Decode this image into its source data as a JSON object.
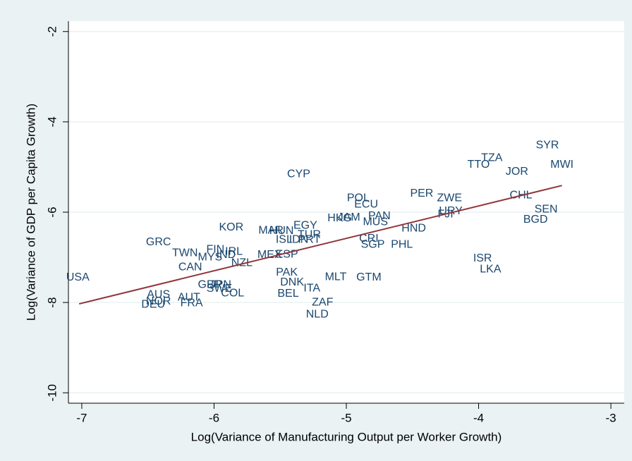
{
  "chart_data": {
    "type": "scatter",
    "x_label": "Log(Variance of Manufacturing Output per Worker Growth)",
    "y_label": "Log(Variance of GDP per Capita Growth)",
    "xlim": [
      -7.101,
      -2.899
    ],
    "ylim": [
      -10.23,
      -1.77
    ],
    "xticks": [
      -7,
      -6,
      -5,
      -4,
      -3
    ],
    "yticks": [
      -10,
      -8,
      -6,
      -4,
      -2
    ],
    "grid": true,
    "series": [
      {
        "type": "scatter",
        "color": "#1a476f",
        "labels": [
          "USA",
          "GRC",
          "TWN",
          "CAN",
          "MYS",
          "FIN",
          "IRL",
          "IND",
          "NZL",
          "KOR",
          "GBR",
          "JPN",
          "SWE",
          "COL",
          "AUS",
          "NOR",
          "DEU",
          "AUT",
          "FRA",
          "MAR",
          "HUN",
          "CYP",
          "EGY",
          "TUR",
          "ISL",
          "IDN",
          "PRT",
          "MEX",
          "ESP",
          "PAK",
          "DNK",
          "BEL",
          "ITA",
          "ZAF",
          "NLD",
          "MLT",
          "GTM",
          "POL",
          "ECU",
          "HKG",
          "JAM",
          "PAN",
          "MUS",
          "CRI",
          "SGP",
          "PHL",
          "HND",
          "PER",
          "ZWE",
          "URY",
          "FJI",
          "ISR",
          "LKA",
          "TTO",
          "TZA",
          "JOR",
          "CHL",
          "SYR",
          "MWI",
          "SEN",
          "BGD"
        ],
        "x": [
          -7.03,
          -6.42,
          -6.22,
          -6.18,
          -6.03,
          -5.99,
          -5.85,
          -5.91,
          -5.79,
          -5.87,
          -6.03,
          -5.95,
          -5.96,
          -5.86,
          -6.42,
          -6.42,
          -6.46,
          -6.19,
          -6.17,
          -5.57,
          -5.49,
          -5.36,
          -5.31,
          -5.28,
          -5.47,
          -5.36,
          -5.28,
          -5.58,
          -5.45,
          -5.45,
          -5.41,
          -5.44,
          -5.26,
          -5.18,
          -5.22,
          -5.08,
          -4.83,
          -4.91,
          -4.85,
          -5.05,
          -4.98,
          -4.75,
          -4.78,
          -4.83,
          -4.8,
          -4.58,
          -4.49,
          -4.43,
          -4.22,
          -4.21,
          -4.25,
          -3.97,
          -3.91,
          -4.0,
          -3.9,
          -3.71,
          -3.68,
          -3.48,
          -3.37,
          -3.49,
          -3.57
        ],
        "values": [
          -7.45,
          -6.67,
          -6.91,
          -7.22,
          -7.0,
          -6.83,
          -6.88,
          -6.95,
          -7.13,
          -6.34,
          -7.61,
          -7.61,
          -7.7,
          -7.8,
          -7.83,
          -7.98,
          -8.05,
          -7.89,
          -8.02,
          -6.41,
          -6.42,
          -5.16,
          -6.3,
          -6.5,
          -6.61,
          -6.61,
          -6.61,
          -6.95,
          -6.94,
          -7.34,
          -7.56,
          -7.81,
          -7.69,
          -8.0,
          -8.27,
          -7.44,
          -7.45,
          -5.69,
          -5.83,
          -6.14,
          -6.12,
          -6.09,
          -6.22,
          -6.59,
          -6.72,
          -6.72,
          -6.36,
          -5.59,
          -5.69,
          -5.98,
          -6.05,
          -7.03,
          -7.27,
          -4.95,
          -4.8,
          -5.11,
          -5.63,
          -4.52,
          -4.95,
          -5.94,
          -6.17
        ]
      },
      {
        "type": "line",
        "color": "#90353b",
        "x": [
          -7.02,
          -3.37
        ],
        "values": [
          -8.03,
          -5.41
        ]
      }
    ]
  }
}
